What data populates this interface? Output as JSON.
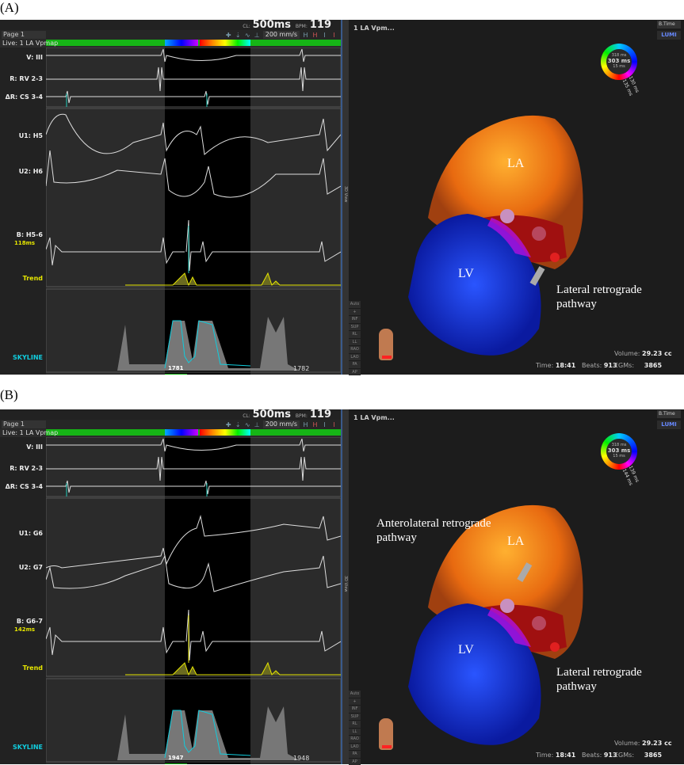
{
  "panels": [
    {
      "label": "(A)",
      "header": {
        "cl_label": "CL:",
        "cl_value": "500ms",
        "bpm_label": "BPM:",
        "bpm_value": "119"
      },
      "toolbar": {
        "page": "Page 1",
        "speed": "200 mm/s"
      },
      "live_label": "Live: 1 LA Vpmap",
      "channels": {
        "v": "V: III",
        "r": "R: RV 2-3",
        "dr": "ΔR: CS 3-4",
        "u1": "U1: H5",
        "u2": "U2: H6",
        "b": "B: H5-6",
        "b_ms": "118ms",
        "trend": "Trend",
        "skyline": "SKYLINE"
      },
      "skyline_marker": "1781",
      "skyline_end": "1782",
      "strip_label": "3D View",
      "map": {
        "title": "1 LA Vpm...",
        "mode": "B.Time",
        "lumi": "LUMI",
        "ring_top": "318 ms",
        "ring_mid": "303 ms",
        "ring_bot": "15 ms",
        "ring_a": "130 ms",
        "ring_b": "135 ms",
        "views": [
          "Auto",
          "+",
          "INF",
          "SUP",
          "RL",
          "LL",
          "RAO",
          "LAO",
          "PA",
          "AP"
        ],
        "volume_label": "Volume:",
        "volume": "29.23 cc",
        "time_label": "Time:",
        "time": "18:41",
        "beats_label": "Beats:",
        "beats": "913",
        "egms_label": "EGMs:",
        "egms": "3865",
        "annotations": {
          "la": "LA",
          "lv": "LV",
          "lateral": "Lateral retrograde pathway"
        }
      }
    },
    {
      "label": "(B)",
      "header": {
        "cl_label": "CL:",
        "cl_value": "500ms",
        "bpm_label": "BPM:",
        "bpm_value": "119"
      },
      "toolbar": {
        "page": "Page 1",
        "speed": "200 mm/s"
      },
      "live_label": "Live: 1 LA Vpmap",
      "channels": {
        "v": "V: III",
        "r": "R: RV 2-3",
        "dr": "ΔR: CS 3-4",
        "u1": "U1: G6",
        "u2": "U2: G7",
        "b": "B: G6-7",
        "b_ms": "142ms",
        "trend": "Trend",
        "skyline": "SKYLINE"
      },
      "skyline_marker": "1947",
      "skyline_end": "1948",
      "strip_label": "3D View",
      "map": {
        "title": "1 LA Vpm...",
        "mode": "B.Time",
        "lumi": "LUMI",
        "ring_top": "318 ms",
        "ring_mid": "303 ms",
        "ring_bot": "15 ms",
        "ring_a": "139 ms",
        "ring_b": "144 ms",
        "views": [
          "Auto",
          "+",
          "INF",
          "SUP",
          "RL",
          "LL",
          "RAO",
          "LAO",
          "PA",
          "AP"
        ],
        "volume_label": "Volume:",
        "volume": "29.23 cc",
        "time_label": "Time:",
        "time": "18:41",
        "beats_label": "Beats:",
        "beats": "913",
        "egms_label": "EGMs:",
        "egms": "3865",
        "annotations": {
          "la": "LA",
          "lv": "LV",
          "anterolateral": "Anterolateral retrograde pathway",
          "lateral": "Lateral retrograde pathway"
        }
      }
    }
  ],
  "colors": {
    "green": "#16b516",
    "trend": "#e6e600",
    "skyline": "#1cd",
    "lv": "#1a3cff",
    "la": "#ff9a1a"
  }
}
